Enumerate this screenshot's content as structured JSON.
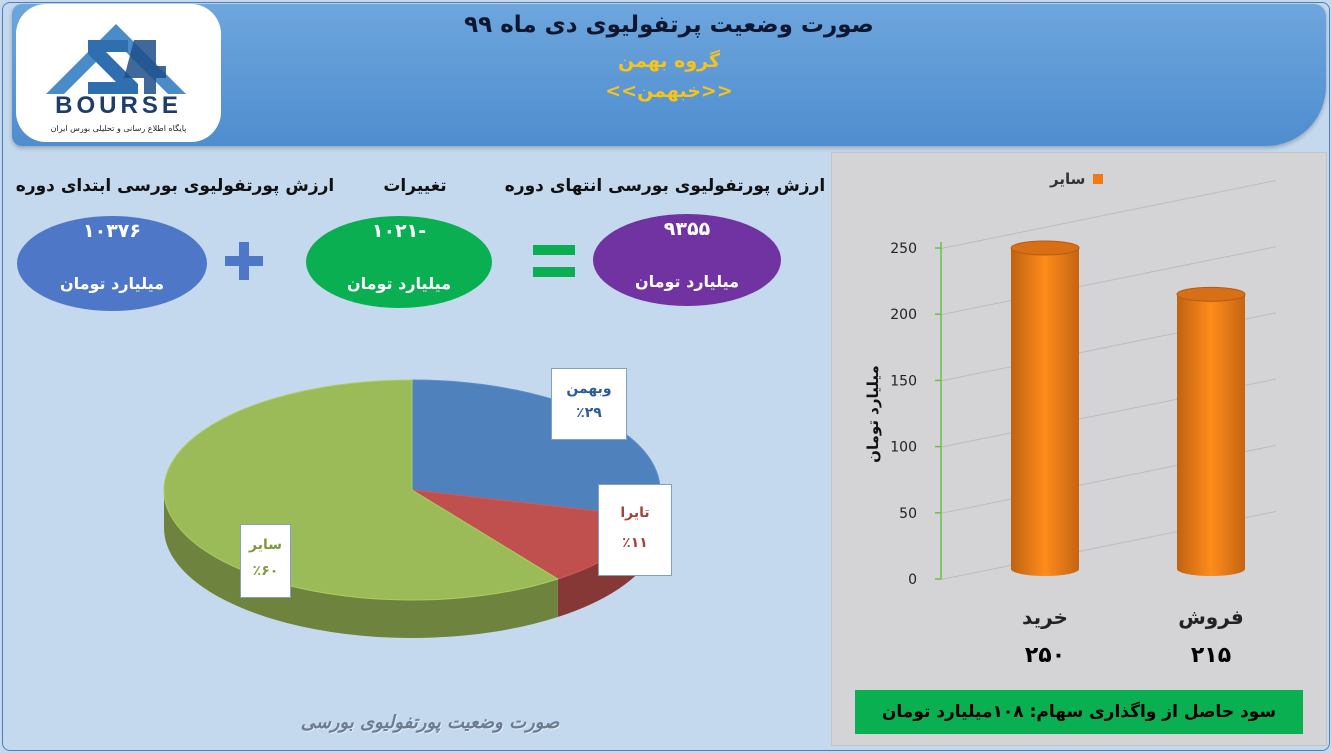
{
  "header": {
    "title": "صورت وضعیت پرتفولیوی دی ماه ۹۹",
    "group": "گروه بهمن",
    "symbol": "<<خبهمن>>"
  },
  "logo": {
    "word": "BOURSE",
    "subtitle": "پایگاه اطلاع رسانی و تحلیلی بورس ایران"
  },
  "summary": {
    "start_label": "ارزش پورتفولیوی بورسی ابتدای دوره",
    "change_label": "تغییرات",
    "end_label": "ارزش پورتفولیوی بورسی انتهای دوره",
    "start_value": "۱۰۳۷۶",
    "change_value": "-۱۰۲۱",
    "end_value": "۹۳۵۵",
    "unit": "میلیارد تومان"
  },
  "pie_caption": "صورت وضعیت پورتفولیوی بورسی",
  "bar_labels": {
    "buy": "خرید",
    "sell": "فروش",
    "buy_value": "۲۵۰",
    "sell_value": "۲۱۵"
  },
  "profit_text": "سود حاصل از واگذاری سهام: ۱۰۸میلیارد تومان",
  "colors": {
    "blue": "#4e78c7",
    "green": "#0aaf52",
    "purple": "#7133a2",
    "pie_blue": "#4f81bd",
    "pie_red": "#c0504d",
    "pie_green": "#9bbb59",
    "bar_orange": "#f07a17"
  },
  "chart_data": [
    {
      "type": "pie",
      "labels": [
        "وبهمن",
        "تایرا",
        "سایر"
      ],
      "values": [
        29,
        11,
        60
      ],
      "value_labels": [
        "٪۲۹",
        "٪۱۱",
        "٪۶۰"
      ]
    },
    {
      "type": "bar",
      "categories": [
        "خرید",
        "فروش"
      ],
      "series": [
        {
          "name": "سایر",
          "values": [
            250,
            215
          ]
        }
      ],
      "ylabel": "میلیارد تومان",
      "ylim": [
        0,
        250
      ],
      "yticks": [
        0,
        50,
        100,
        150,
        200,
        250
      ],
      "legend": "top"
    }
  ]
}
